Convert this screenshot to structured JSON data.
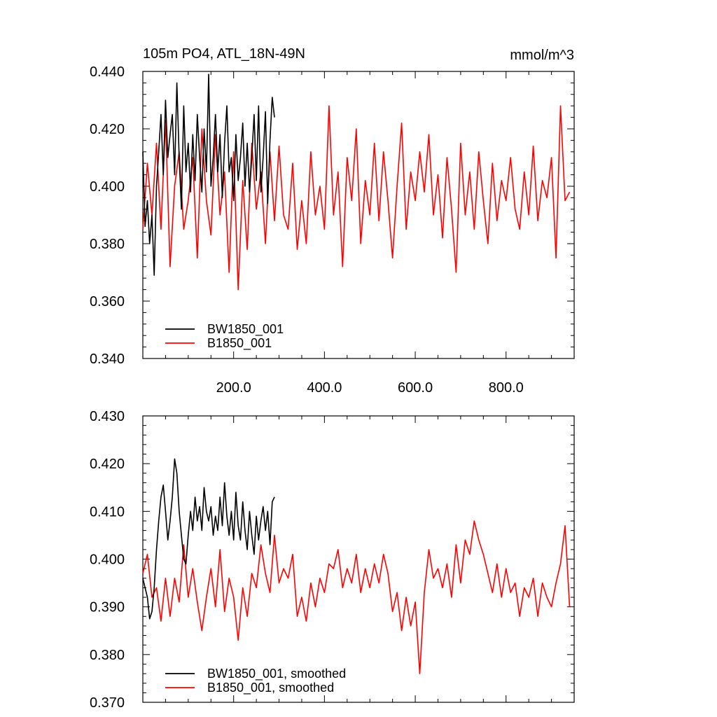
{
  "chart_data": [
    {
      "type": "line",
      "title": "105m PO4, ATL_18N-49N",
      "units": "mmol/m^3",
      "xlabel": "",
      "ylabel": "",
      "xlim": [
        0,
        950
      ],
      "ylim": [
        0.34,
        0.44
      ],
      "x_ticks": [
        200,
        400,
        600,
        800
      ],
      "x_tick_labels": [
        "200.0",
        "400.0",
        "600.0",
        "800.0"
      ],
      "y_ticks": [
        0.34,
        0.36,
        0.38,
        0.4,
        0.42,
        0.44
      ],
      "y_tick_labels": [
        "0.340",
        "0.360",
        "0.380",
        "0.400",
        "0.420",
        "0.440"
      ],
      "grid": false,
      "legend_position": "bottom-left",
      "series": [
        {
          "name": "BW1850_001",
          "color": "#000000",
          "x": [
            0,
            5,
            10,
            15,
            20,
            25,
            30,
            35,
            40,
            45,
            50,
            55,
            60,
            65,
            70,
            75,
            80,
            85,
            90,
            95,
            100,
            105,
            110,
            115,
            120,
            125,
            130,
            135,
            140,
            145,
            150,
            155,
            160,
            165,
            170,
            175,
            180,
            185,
            190,
            195,
            200,
            205,
            210,
            215,
            220,
            225,
            230,
            235,
            240,
            245,
            250,
            255,
            260,
            265,
            270,
            275,
            280,
            285,
            290
          ],
          "y": [
            0.412,
            0.386,
            0.395,
            0.38,
            0.39,
            0.369,
            0.4,
            0.412,
            0.425,
            0.404,
            0.43,
            0.41,
            0.418,
            0.425,
            0.404,
            0.436,
            0.41,
            0.392,
            0.428,
            0.405,
            0.415,
            0.398,
            0.418,
            0.402,
            0.425,
            0.41,
            0.398,
            0.42,
            0.405,
            0.439,
            0.4,
            0.41,
            0.425,
            0.405,
            0.418,
            0.396,
            0.415,
            0.428,
            0.405,
            0.41,
            0.395,
            0.418,
            0.402,
            0.41,
            0.422,
            0.4,
            0.415,
            0.398,
            0.41,
            0.425,
            0.402,
            0.428,
            0.398,
            0.41,
            0.426,
            0.394,
            0.416,
            0.431,
            0.424
          ]
        },
        {
          "name": "B1850_001",
          "color": "#ff0000",
          "x": [
            0,
            10,
            20,
            30,
            40,
            50,
            60,
            70,
            80,
            90,
            100,
            110,
            120,
            130,
            140,
            150,
            160,
            170,
            180,
            190,
            200,
            210,
            220,
            230,
            240,
            250,
            260,
            270,
            280,
            290,
            300,
            310,
            320,
            330,
            340,
            350,
            360,
            370,
            380,
            390,
            400,
            410,
            420,
            430,
            440,
            450,
            460,
            470,
            480,
            490,
            500,
            510,
            520,
            530,
            540,
            550,
            560,
            570,
            580,
            590,
            600,
            610,
            620,
            630,
            640,
            650,
            660,
            670,
            680,
            690,
            700,
            710,
            720,
            730,
            740,
            750,
            760,
            770,
            780,
            790,
            800,
            810,
            820,
            830,
            840,
            850,
            860,
            870,
            880,
            890,
            900,
            910,
            920,
            930,
            940
          ],
          "y": [
            0.385,
            0.408,
            0.39,
            0.415,
            0.385,
            0.423,
            0.372,
            0.4,
            0.412,
            0.385,
            0.395,
            0.41,
            0.375,
            0.42,
            0.395,
            0.383,
            0.418,
            0.39,
            0.405,
            0.37,
            0.412,
            0.364,
            0.402,
            0.378,
            0.415,
            0.392,
            0.405,
            0.38,
            0.412,
            0.388,
            0.414,
            0.39,
            0.385,
            0.408,
            0.378,
            0.395,
            0.38,
            0.412,
            0.39,
            0.4,
            0.385,
            0.428,
            0.39,
            0.405,
            0.372,
            0.41,
            0.395,
            0.42,
            0.38,
            0.402,
            0.39,
            0.415,
            0.388,
            0.412,
            0.395,
            0.375,
            0.4,
            0.422,
            0.385,
            0.405,
            0.395,
            0.412,
            0.398,
            0.418,
            0.39,
            0.404,
            0.382,
            0.41,
            0.392,
            0.37,
            0.415,
            0.39,
            0.405,
            0.385,
            0.412,
            0.395,
            0.38,
            0.408,
            0.388,
            0.402,
            0.395,
            0.41,
            0.392,
            0.385,
            0.405,
            0.39,
            0.414,
            0.388,
            0.402,
            0.396,
            0.41,
            0.375,
            0.428,
            0.395,
            0.398
          ]
        }
      ]
    },
    {
      "type": "line",
      "title": "",
      "xlabel": "",
      "ylabel": "",
      "xlim": [
        0,
        950
      ],
      "ylim": [
        0.37,
        0.43
      ],
      "y_ticks": [
        0.37,
        0.38,
        0.39,
        0.4,
        0.41,
        0.42,
        0.43
      ],
      "y_tick_labels": [
        "0.370",
        "0.380",
        "0.390",
        "0.400",
        "0.410",
        "0.420",
        "0.430"
      ],
      "grid": false,
      "legend_position": "bottom-left",
      "series": [
        {
          "name": "BW1850_001, smoothed",
          "color": "#000000",
          "x": [
            0,
            5,
            10,
            15,
            20,
            25,
            30,
            35,
            40,
            45,
            50,
            55,
            60,
            65,
            70,
            75,
            80,
            85,
            90,
            95,
            100,
            105,
            110,
            115,
            120,
            125,
            130,
            135,
            140,
            145,
            150,
            155,
            160,
            165,
            170,
            175,
            180,
            185,
            190,
            195,
            200,
            205,
            210,
            215,
            220,
            225,
            230,
            235,
            240,
            245,
            250,
            255,
            260,
            265,
            270,
            275,
            280,
            285,
            290
          ],
          "y": [
            0.396,
            0.394,
            0.392,
            0.3875,
            0.389,
            0.394,
            0.402,
            0.408,
            0.413,
            0.4155,
            0.41,
            0.404,
            0.408,
            0.413,
            0.421,
            0.418,
            0.41,
            0.405,
            0.4,
            0.399,
            0.405,
            0.41,
            0.406,
            0.413,
            0.408,
            0.411,
            0.406,
            0.415,
            0.41,
            0.408,
            0.411,
            0.405,
            0.409,
            0.406,
            0.413,
            0.407,
            0.416,
            0.409,
            0.405,
            0.41,
            0.404,
            0.414,
            0.407,
            0.404,
            0.412,
            0.406,
            0.402,
            0.41,
            0.405,
            0.401,
            0.409,
            0.404,
            0.408,
            0.411,
            0.406,
            0.41,
            0.403,
            0.412,
            0.413
          ]
        },
        {
          "name": "B1850_001, smoothed",
          "color": "#ff0000",
          "x": [
            0,
            10,
            20,
            30,
            40,
            50,
            60,
            70,
            80,
            90,
            100,
            110,
            120,
            130,
            140,
            150,
            160,
            170,
            180,
            190,
            200,
            210,
            220,
            230,
            240,
            250,
            260,
            270,
            280,
            290,
            300,
            310,
            320,
            330,
            340,
            350,
            360,
            370,
            380,
            390,
            400,
            410,
            420,
            430,
            440,
            450,
            460,
            470,
            480,
            490,
            500,
            510,
            520,
            530,
            540,
            550,
            560,
            570,
            580,
            590,
            600,
            610,
            620,
            630,
            640,
            650,
            660,
            670,
            680,
            690,
            700,
            710,
            720,
            730,
            740,
            750,
            760,
            770,
            780,
            790,
            800,
            810,
            820,
            830,
            840,
            850,
            860,
            870,
            880,
            890,
            900,
            910,
            920,
            930,
            940
          ],
          "y": [
            0.397,
            0.401,
            0.392,
            0.394,
            0.387,
            0.396,
            0.388,
            0.396,
            0.391,
            0.403,
            0.392,
            0.398,
            0.391,
            0.385,
            0.392,
            0.398,
            0.39,
            0.402,
            0.389,
            0.396,
            0.392,
            0.383,
            0.394,
            0.388,
            0.397,
            0.394,
            0.403,
            0.397,
            0.393,
            0.405,
            0.395,
            0.398,
            0.396,
            0.401,
            0.388,
            0.392,
            0.387,
            0.395,
            0.39,
            0.396,
            0.393,
            0.399,
            0.398,
            0.402,
            0.394,
            0.398,
            0.395,
            0.401,
            0.393,
            0.398,
            0.394,
            0.399,
            0.395,
            0.401,
            0.397,
            0.389,
            0.393,
            0.385,
            0.392,
            0.386,
            0.391,
            0.376,
            0.393,
            0.402,
            0.396,
            0.398,
            0.394,
            0.399,
            0.392,
            0.403,
            0.395,
            0.404,
            0.401,
            0.408,
            0.404,
            0.401,
            0.397,
            0.393,
            0.399,
            0.392,
            0.398,
            0.393,
            0.395,
            0.388,
            0.394,
            0.392,
            0.396,
            0.388,
            0.395,
            0.392,
            0.39,
            0.395,
            0.399,
            0.407,
            0.39
          ]
        }
      ]
    }
  ]
}
